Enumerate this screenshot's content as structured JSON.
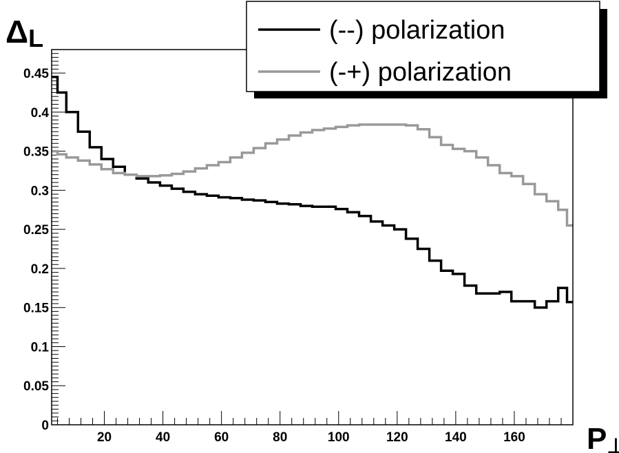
{
  "chart_data": {
    "type": "line",
    "title": "",
    "xlabel": "P",
    "xlabel_sub": "⊥",
    "ylabel": "Δ",
    "ylabel_sub": "L",
    "xlim": [
      2,
      180
    ],
    "ylim": [
      0,
      0.48
    ],
    "x_ticks": [
      20,
      40,
      60,
      80,
      100,
      120,
      140,
      160
    ],
    "y_ticks": [
      0,
      0.05,
      0.1,
      0.15,
      0.2,
      0.25,
      0.3,
      0.35,
      0.4,
      0.45
    ],
    "y_tick_labels": [
      "0",
      "0.05",
      "0.1",
      "0.15",
      "0.2",
      "0.25",
      "0.3",
      "0.35",
      "0.4",
      "0.45"
    ],
    "grid": false,
    "legend_position": "top-right",
    "bin_edges": [
      2,
      4,
      7,
      11,
      15,
      19,
      23,
      27,
      31,
      35,
      39,
      43,
      47,
      51,
      55,
      59,
      63,
      67,
      71,
      75,
      79,
      83,
      87,
      91,
      95,
      99,
      103,
      107,
      111,
      115,
      119,
      123,
      127,
      131,
      135,
      139,
      143,
      147,
      151,
      155,
      159,
      163,
      167,
      171,
      175,
      178,
      180
    ],
    "series": [
      {
        "name": "(--) polarization",
        "color": "#000000",
        "values": [
          0.445,
          0.425,
          0.4,
          0.375,
          0.355,
          0.34,
          0.33,
          0.32,
          0.315,
          0.31,
          0.306,
          0.302,
          0.298,
          0.295,
          0.293,
          0.291,
          0.29,
          0.288,
          0.287,
          0.285,
          0.283,
          0.282,
          0.28,
          0.279,
          0.279,
          0.276,
          0.272,
          0.267,
          0.26,
          0.255,
          0.25,
          0.238,
          0.225,
          0.21,
          0.197,
          0.193,
          0.178,
          0.168,
          0.168,
          0.17,
          0.158,
          0.158,
          0.15,
          0.158,
          0.175,
          0.157
        ]
      },
      {
        "name": "(-+) polarization",
        "color": "#999999",
        "values": [
          0.35,
          0.346,
          0.342,
          0.338,
          0.333,
          0.327,
          0.322,
          0.32,
          0.318,
          0.318,
          0.319,
          0.321,
          0.324,
          0.328,
          0.332,
          0.336,
          0.342,
          0.348,
          0.354,
          0.36,
          0.365,
          0.37,
          0.374,
          0.377,
          0.379,
          0.381,
          0.383,
          0.384,
          0.384,
          0.384,
          0.384,
          0.383,
          0.378,
          0.368,
          0.358,
          0.353,
          0.35,
          0.342,
          0.332,
          0.322,
          0.318,
          0.308,
          0.295,
          0.286,
          0.275,
          0.255
        ]
      }
    ]
  }
}
